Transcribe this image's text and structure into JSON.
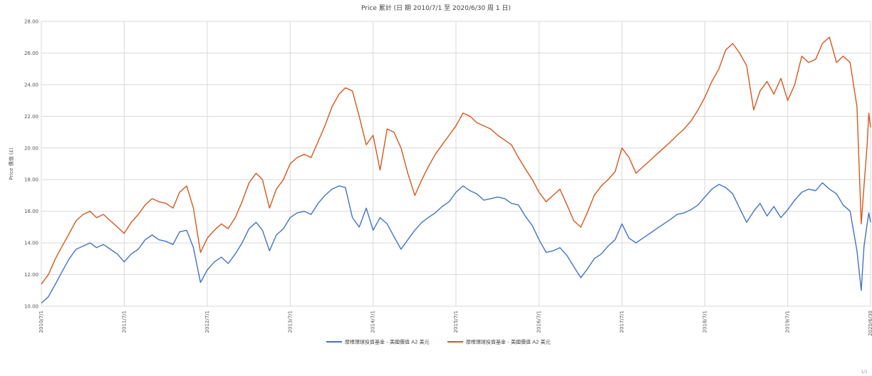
{
  "chart_data": {
    "type": "line",
    "title": "Price 累計 (日 期 2010/7/1 至 2020/6/30 周 1 日)",
    "ylabel": "Price 價值 (£)",
    "xlabel": "",
    "ylim": [
      10,
      28
    ],
    "y_ticks": [
      "10.00",
      "12.00",
      "14.00",
      "16.00",
      "18.00",
      "20.00",
      "22.00",
      "24.00",
      "26.00",
      "28.00"
    ],
    "x_ticks": [
      "2010/7/1",
      "2011/7/1",
      "2012/7/1",
      "2013/7/1",
      "2014/7/1",
      "2015/7/1",
      "2016/7/1",
      "2017/7/1",
      "2018/7/1",
      "2019/7/1",
      "2020/6/30"
    ],
    "grid": true,
    "legend_position": "bottom",
    "series": [
      {
        "name": "摩根環球投資基金 - 美國價值 A2 美元",
        "color": "#4472c4",
        "points": [
          [
            "2010-07-01",
            10.2
          ],
          [
            "2010-08-01",
            10.6
          ],
          [
            "2010-09-01",
            11.4
          ],
          [
            "2010-10-01",
            12.2
          ],
          [
            "2010-11-01",
            13.0
          ],
          [
            "2010-12-01",
            13.6
          ],
          [
            "2011-01-01",
            13.8
          ],
          [
            "2011-02-01",
            14.0
          ],
          [
            "2011-03-01",
            13.7
          ],
          [
            "2011-04-01",
            13.9
          ],
          [
            "2011-05-01",
            13.6
          ],
          [
            "2011-06-01",
            13.3
          ],
          [
            "2011-07-01",
            12.8
          ],
          [
            "2011-08-01",
            13.3
          ],
          [
            "2011-09-01",
            13.6
          ],
          [
            "2011-10-01",
            14.2
          ],
          [
            "2011-11-01",
            14.5
          ],
          [
            "2011-12-01",
            14.2
          ],
          [
            "2012-01-01",
            14.1
          ],
          [
            "2012-02-01",
            13.9
          ],
          [
            "2012-03-01",
            14.7
          ],
          [
            "2012-04-01",
            14.8
          ],
          [
            "2012-05-01",
            13.7
          ],
          [
            "2012-06-01",
            11.5
          ],
          [
            "2012-07-01",
            12.3
          ],
          [
            "2012-08-01",
            12.8
          ],
          [
            "2012-09-01",
            13.1
          ],
          [
            "2012-10-01",
            12.7
          ],
          [
            "2012-11-01",
            13.3
          ],
          [
            "2012-12-01",
            14.0
          ],
          [
            "2013-01-01",
            14.9
          ],
          [
            "2013-02-01",
            15.3
          ],
          [
            "2013-03-01",
            14.8
          ],
          [
            "2013-04-01",
            13.5
          ],
          [
            "2013-05-01",
            14.5
          ],
          [
            "2013-06-01",
            14.9
          ],
          [
            "2013-07-01",
            15.6
          ],
          [
            "2013-08-01",
            15.9
          ],
          [
            "2013-09-01",
            16.0
          ],
          [
            "2013-10-01",
            15.8
          ],
          [
            "2013-11-01",
            16.5
          ],
          [
            "2013-12-01",
            17.0
          ],
          [
            "2014-01-01",
            17.4
          ],
          [
            "2014-02-01",
            17.6
          ],
          [
            "2014-03-01",
            17.5
          ],
          [
            "2014-04-01",
            15.6
          ],
          [
            "2014-05-01",
            15.0
          ],
          [
            "2014-06-01",
            16.2
          ],
          [
            "2014-07-01",
            14.8
          ],
          [
            "2014-08-01",
            15.6
          ],
          [
            "2014-09-01",
            15.2
          ],
          [
            "2014-10-01",
            14.4
          ],
          [
            "2014-11-01",
            13.6
          ],
          [
            "2014-12-01",
            14.2
          ],
          [
            "2015-01-01",
            14.8
          ],
          [
            "2015-02-01",
            15.3
          ],
          [
            "2015-03-01",
            15.6
          ],
          [
            "2015-04-01",
            15.9
          ],
          [
            "2015-05-01",
            16.3
          ],
          [
            "2015-06-01",
            16.6
          ],
          [
            "2015-07-01",
            17.2
          ],
          [
            "2015-08-01",
            17.6
          ],
          [
            "2015-09-01",
            17.3
          ],
          [
            "2015-10-01",
            17.1
          ],
          [
            "2015-11-01",
            16.7
          ],
          [
            "2015-12-01",
            16.8
          ],
          [
            "2016-01-01",
            16.9
          ],
          [
            "2016-02-01",
            16.8
          ],
          [
            "2016-03-01",
            16.5
          ],
          [
            "2016-04-01",
            16.4
          ],
          [
            "2016-05-01",
            15.7
          ],
          [
            "2016-06-01",
            15.1
          ],
          [
            "2016-07-01",
            14.2
          ],
          [
            "2016-08-01",
            13.4
          ],
          [
            "2016-09-01",
            13.5
          ],
          [
            "2016-10-01",
            13.7
          ],
          [
            "2016-11-01",
            13.2
          ],
          [
            "2016-12-01",
            12.5
          ],
          [
            "2017-01-01",
            11.8
          ],
          [
            "2017-02-01",
            12.4
          ],
          [
            "2017-03-01",
            13.0
          ],
          [
            "2017-04-01",
            13.3
          ],
          [
            "2017-05-01",
            13.8
          ],
          [
            "2017-06-01",
            14.2
          ],
          [
            "2017-07-01",
            15.2
          ],
          [
            "2017-08-01",
            14.3
          ],
          [
            "2017-09-01",
            14.0
          ],
          [
            "2017-10-01",
            14.3
          ],
          [
            "2017-11-01",
            14.6
          ],
          [
            "2017-12-01",
            14.9
          ],
          [
            "2018-01-01",
            15.2
          ],
          [
            "2018-02-01",
            15.5
          ],
          [
            "2018-03-01",
            15.8
          ],
          [
            "2018-04-01",
            15.9
          ],
          [
            "2018-05-01",
            16.1
          ],
          [
            "2018-06-01",
            16.4
          ],
          [
            "2018-07-01",
            16.9
          ],
          [
            "2018-08-01",
            17.4
          ],
          [
            "2018-09-01",
            17.7
          ],
          [
            "2018-10-01",
            17.5
          ],
          [
            "2018-11-01",
            17.1
          ],
          [
            "2018-12-01",
            16.2
          ],
          [
            "2019-01-01",
            15.3
          ],
          [
            "2019-02-01",
            16.0
          ],
          [
            "2019-03-01",
            16.5
          ],
          [
            "2019-04-01",
            15.7
          ],
          [
            "2019-05-01",
            16.3
          ],
          [
            "2019-06-01",
            15.6
          ],
          [
            "2019-07-01",
            16.1
          ],
          [
            "2019-08-01",
            16.7
          ],
          [
            "2019-09-01",
            17.2
          ],
          [
            "2019-10-01",
            17.4
          ],
          [
            "2019-11-01",
            17.3
          ],
          [
            "2019-12-01",
            17.8
          ],
          [
            "2020-01-01",
            17.4
          ],
          [
            "2020-02-01",
            17.1
          ],
          [
            "2020-03-01",
            16.4
          ],
          [
            "2020-04-01",
            16.0
          ],
          [
            "2020-05-01",
            13.5
          ],
          [
            "2020-05-20",
            11.0
          ],
          [
            "2020-06-01",
            13.8
          ],
          [
            "2020-06-15",
            15.2
          ],
          [
            "2020-06-22",
            15.9
          ],
          [
            "2020-06-30",
            15.3
          ]
        ]
      },
      {
        "name": "摩根環球投資基金 - 美國價值 A2 美元",
        "color": "#d4581e",
        "points": [
          [
            "2010-07-01",
            11.4
          ],
          [
            "2010-08-01",
            12.0
          ],
          [
            "2010-09-01",
            13.0
          ],
          [
            "2010-10-01",
            13.8
          ],
          [
            "2010-11-01",
            14.6
          ],
          [
            "2010-12-01",
            15.4
          ],
          [
            "2011-01-01",
            15.8
          ],
          [
            "2011-02-01",
            16.0
          ],
          [
            "2011-03-01",
            15.6
          ],
          [
            "2011-04-01",
            15.8
          ],
          [
            "2011-05-01",
            15.4
          ],
          [
            "2011-06-01",
            15.0
          ],
          [
            "2011-07-01",
            14.6
          ],
          [
            "2011-08-01",
            15.3
          ],
          [
            "2011-09-01",
            15.8
          ],
          [
            "2011-10-01",
            16.4
          ],
          [
            "2011-11-01",
            16.8
          ],
          [
            "2011-12-01",
            16.6
          ],
          [
            "2012-01-01",
            16.5
          ],
          [
            "2012-02-01",
            16.2
          ],
          [
            "2012-03-01",
            17.2
          ],
          [
            "2012-04-01",
            17.6
          ],
          [
            "2012-05-01",
            16.2
          ],
          [
            "2012-06-01",
            13.4
          ],
          [
            "2012-07-01",
            14.3
          ],
          [
            "2012-08-01",
            14.8
          ],
          [
            "2012-09-01",
            15.2
          ],
          [
            "2012-10-01",
            14.9
          ],
          [
            "2012-11-01",
            15.6
          ],
          [
            "2012-12-01",
            16.6
          ],
          [
            "2013-01-01",
            17.8
          ],
          [
            "2013-02-01",
            18.4
          ],
          [
            "2013-03-01",
            18.0
          ],
          [
            "2013-04-01",
            16.2
          ],
          [
            "2013-05-01",
            17.4
          ],
          [
            "2013-06-01",
            18.0
          ],
          [
            "2013-07-01",
            19.0
          ],
          [
            "2013-08-01",
            19.4
          ],
          [
            "2013-09-01",
            19.6
          ],
          [
            "2013-10-01",
            19.4
          ],
          [
            "2013-11-01",
            20.4
          ],
          [
            "2013-12-01",
            21.4
          ],
          [
            "2014-01-01",
            22.6
          ],
          [
            "2014-02-01",
            23.4
          ],
          [
            "2014-03-01",
            23.8
          ],
          [
            "2014-04-01",
            23.6
          ],
          [
            "2014-05-01",
            22.0
          ],
          [
            "2014-06-01",
            20.2
          ],
          [
            "2014-07-01",
            20.8
          ],
          [
            "2014-08-01",
            18.6
          ],
          [
            "2014-09-01",
            21.2
          ],
          [
            "2014-10-01",
            21.0
          ],
          [
            "2014-11-01",
            20.0
          ],
          [
            "2014-12-01",
            18.4
          ],
          [
            "2015-01-01",
            17.0
          ],
          [
            "2015-02-01",
            18.0
          ],
          [
            "2015-03-01",
            18.8
          ],
          [
            "2015-04-01",
            19.6
          ],
          [
            "2015-05-01",
            20.2
          ],
          [
            "2015-06-01",
            20.8
          ],
          [
            "2015-07-01",
            21.4
          ],
          [
            "2015-08-01",
            22.2
          ],
          [
            "2015-09-01",
            22.0
          ],
          [
            "2015-10-01",
            21.6
          ],
          [
            "2015-11-01",
            21.4
          ],
          [
            "2015-12-01",
            21.2
          ],
          [
            "2016-01-01",
            20.8
          ],
          [
            "2016-02-01",
            20.5
          ],
          [
            "2016-03-01",
            20.2
          ],
          [
            "2016-04-01",
            19.4
          ],
          [
            "2016-05-01",
            18.7
          ],
          [
            "2016-06-01",
            18.0
          ],
          [
            "2016-07-01",
            17.2
          ],
          [
            "2016-08-01",
            16.6
          ],
          [
            "2016-09-01",
            17.0
          ],
          [
            "2016-10-01",
            17.4
          ],
          [
            "2016-11-01",
            16.4
          ],
          [
            "2016-12-01",
            15.4
          ],
          [
            "2017-01-01",
            15.0
          ],
          [
            "2017-02-01",
            16.0
          ],
          [
            "2017-03-01",
            17.0
          ],
          [
            "2017-04-01",
            17.6
          ],
          [
            "2017-05-01",
            18.0
          ],
          [
            "2017-06-01",
            18.5
          ],
          [
            "2017-07-01",
            20.0
          ],
          [
            "2017-08-01",
            19.4
          ],
          [
            "2017-09-01",
            18.4
          ],
          [
            "2017-10-01",
            18.8
          ],
          [
            "2017-11-01",
            19.2
          ],
          [
            "2017-12-01",
            19.6
          ],
          [
            "2018-01-01",
            20.0
          ],
          [
            "2018-02-01",
            20.4
          ],
          [
            "2018-03-01",
            20.8
          ],
          [
            "2018-04-01",
            21.2
          ],
          [
            "2018-05-01",
            21.7
          ],
          [
            "2018-06-01",
            22.4
          ],
          [
            "2018-07-01",
            23.2
          ],
          [
            "2018-08-01",
            24.2
          ],
          [
            "2018-09-01",
            25.0
          ],
          [
            "2018-10-01",
            26.2
          ],
          [
            "2018-11-01",
            26.6
          ],
          [
            "2018-12-01",
            26.0
          ],
          [
            "2019-01-01",
            25.2
          ],
          [
            "2019-02-01",
            22.4
          ],
          [
            "2019-03-01",
            23.6
          ],
          [
            "2019-04-01",
            24.2
          ],
          [
            "2019-05-01",
            23.4
          ],
          [
            "2019-06-01",
            24.4
          ],
          [
            "2019-07-01",
            23.0
          ],
          [
            "2019-08-01",
            24.0
          ],
          [
            "2019-09-01",
            25.8
          ],
          [
            "2019-10-01",
            25.4
          ],
          [
            "2019-11-01",
            25.6
          ],
          [
            "2019-12-01",
            26.6
          ],
          [
            "2020-01-01",
            27.0
          ],
          [
            "2020-02-01",
            25.4
          ],
          [
            "2020-03-01",
            25.8
          ],
          [
            "2020-04-01",
            25.4
          ],
          [
            "2020-05-01",
            22.6
          ],
          [
            "2020-05-20",
            15.2
          ],
          [
            "2020-06-01",
            17.6
          ],
          [
            "2020-06-15",
            20.2
          ],
          [
            "2020-06-22",
            22.2
          ],
          [
            "2020-06-30",
            21.3
          ]
        ]
      }
    ]
  },
  "corner_text": "1/1"
}
